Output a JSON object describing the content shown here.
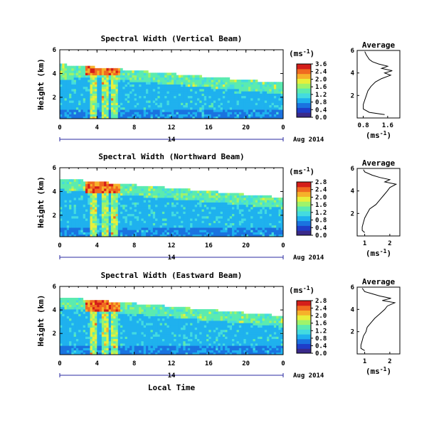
{
  "colors": [
    "#3a2a8a",
    "#1f3dc8",
    "#1a73e0",
    "#1fb1ee",
    "#43dbe0",
    "#5bebb0",
    "#9ff36a",
    "#e8ef3a",
    "#f6b12a",
    "#f06a20",
    "#d41e1a"
  ],
  "chart_data": [
    {
      "type": "heatmap",
      "title": "Spectral Width (Vertical Beam)",
      "ylabel": "Height (km)",
      "xticks": [
        "0",
        "4",
        "8",
        "12",
        "16",
        "20",
        "0"
      ],
      "yticks": [
        "2",
        "4",
        "6"
      ],
      "xlim": [
        0,
        24
      ],
      "ylim": [
        0.2,
        6
      ],
      "date_label": "14",
      "month_label": "Aug 2014",
      "colorbar": {
        "unit": "(ms",
        "unit_sup": "-1",
        "unit_close": ")",
        "ticks": [
          "3.6",
          "2.4",
          "2.0",
          "1.6",
          "1.2",
          "0.8",
          "0.4",
          "0.0"
        ],
        "range": [
          0,
          3.6
        ]
      },
      "average": {
        "title": "Average",
        "xticks": [
          "0.8",
          "1.6"
        ],
        "yticks": [
          "2",
          "4",
          "6"
        ],
        "xlim": [
          0.6,
          2.0
        ],
        "xlabel": "(ms",
        "xlabel_sup": "-1",
        "xlabel_close": ")",
        "height": [
          0.3,
          0.5,
          0.8,
          1.2,
          1.6,
          2.0,
          2.4,
          2.8,
          3.2,
          3.5,
          3.8,
          4.0,
          4.2,
          4.4,
          4.6,
          4.8,
          5.0,
          5.2,
          5.4,
          5.6,
          5.9
        ],
        "width": [
          1.5,
          1.0,
          0.8,
          0.8,
          0.85,
          0.9,
          0.95,
          1.05,
          1.2,
          1.4,
          1.7,
          1.5,
          1.75,
          1.4,
          1.6,
          1.3,
          1.1,
          1.0,
          0.95,
          0.9,
          0.85
        ]
      }
    },
    {
      "type": "heatmap",
      "title": "Spectral Width (Northward Beam)",
      "ylabel": "Height (km)",
      "xticks": [
        "0",
        "4",
        "8",
        "12",
        "16",
        "20",
        "0"
      ],
      "yticks": [
        "2",
        "4",
        "6"
      ],
      "xlim": [
        0,
        24
      ],
      "ylim": [
        0.2,
        6
      ],
      "date_label": "14",
      "month_label": "Aug 2014",
      "colorbar": {
        "unit": "(ms",
        "unit_sup": "-1",
        "unit_close": ")",
        "ticks": [
          "2.8",
          "2.4",
          "2.0",
          "1.6",
          "1.2",
          "0.8",
          "0.4",
          "0.0"
        ],
        "range": [
          0,
          2.8
        ]
      },
      "average": {
        "title": "Average",
        "xticks": [
          "1",
          "2"
        ],
        "yticks": [
          "2",
          "4",
          "6"
        ],
        "xlim": [
          0.7,
          2.4
        ],
        "xlabel": "(ms",
        "xlabel_sup": "-1",
        "xlabel_close": ")",
        "height": [
          0.3,
          0.5,
          0.8,
          1.2,
          1.6,
          2.0,
          2.4,
          2.8,
          3.2,
          3.6,
          4.0,
          4.3,
          4.6,
          4.8,
          5.0,
          5.2,
          5.4,
          5.7,
          5.9
        ],
        "width": [
          1.0,
          0.9,
          0.9,
          0.95,
          1.0,
          1.1,
          1.2,
          1.45,
          1.6,
          1.75,
          1.9,
          2.0,
          2.25,
          1.8,
          2.0,
          1.6,
          1.3,
          1.0,
          0.95
        ]
      }
    },
    {
      "type": "heatmap",
      "title": "Spectral Width (Eastward Beam)",
      "ylabel": "Height (km)",
      "xlabel": "Local Time",
      "xticks": [
        "0",
        "4",
        "8",
        "12",
        "16",
        "20",
        "0"
      ],
      "yticks": [
        "2",
        "4",
        "6"
      ],
      "xlim": [
        0,
        24
      ],
      "ylim": [
        0.2,
        6
      ],
      "date_label": "14",
      "month_label": "Aug 2014",
      "colorbar": {
        "unit": "(ms",
        "unit_sup": "-1",
        "unit_close": ")",
        "ticks": [
          "2.8",
          "2.4",
          "2.0",
          "1.6",
          "1.2",
          "0.8",
          "0.4",
          "0.0"
        ],
        "range": [
          0,
          2.8
        ]
      },
      "average": {
        "title": "Average",
        "xticks": [
          "1",
          "2"
        ],
        "yticks": [
          "2",
          "4",
          "6"
        ],
        "xlim": [
          0.7,
          2.4
        ],
        "xlabel": "(ms",
        "xlabel_sup": "-1",
        "xlabel_close": ")",
        "height": [
          0.3,
          0.5,
          0.8,
          1.2,
          1.6,
          2.0,
          2.4,
          2.8,
          3.2,
          3.6,
          4.0,
          4.3,
          4.6,
          4.8,
          5.0,
          5.2,
          5.4,
          5.6,
          5.9
        ],
        "width": [
          1.0,
          0.85,
          0.85,
          0.9,
          0.95,
          1.05,
          1.1,
          1.25,
          1.4,
          1.6,
          1.8,
          1.9,
          2.2,
          1.7,
          2.05,
          1.6,
          1.3,
          1.0,
          0.9
        ]
      }
    }
  ]
}
